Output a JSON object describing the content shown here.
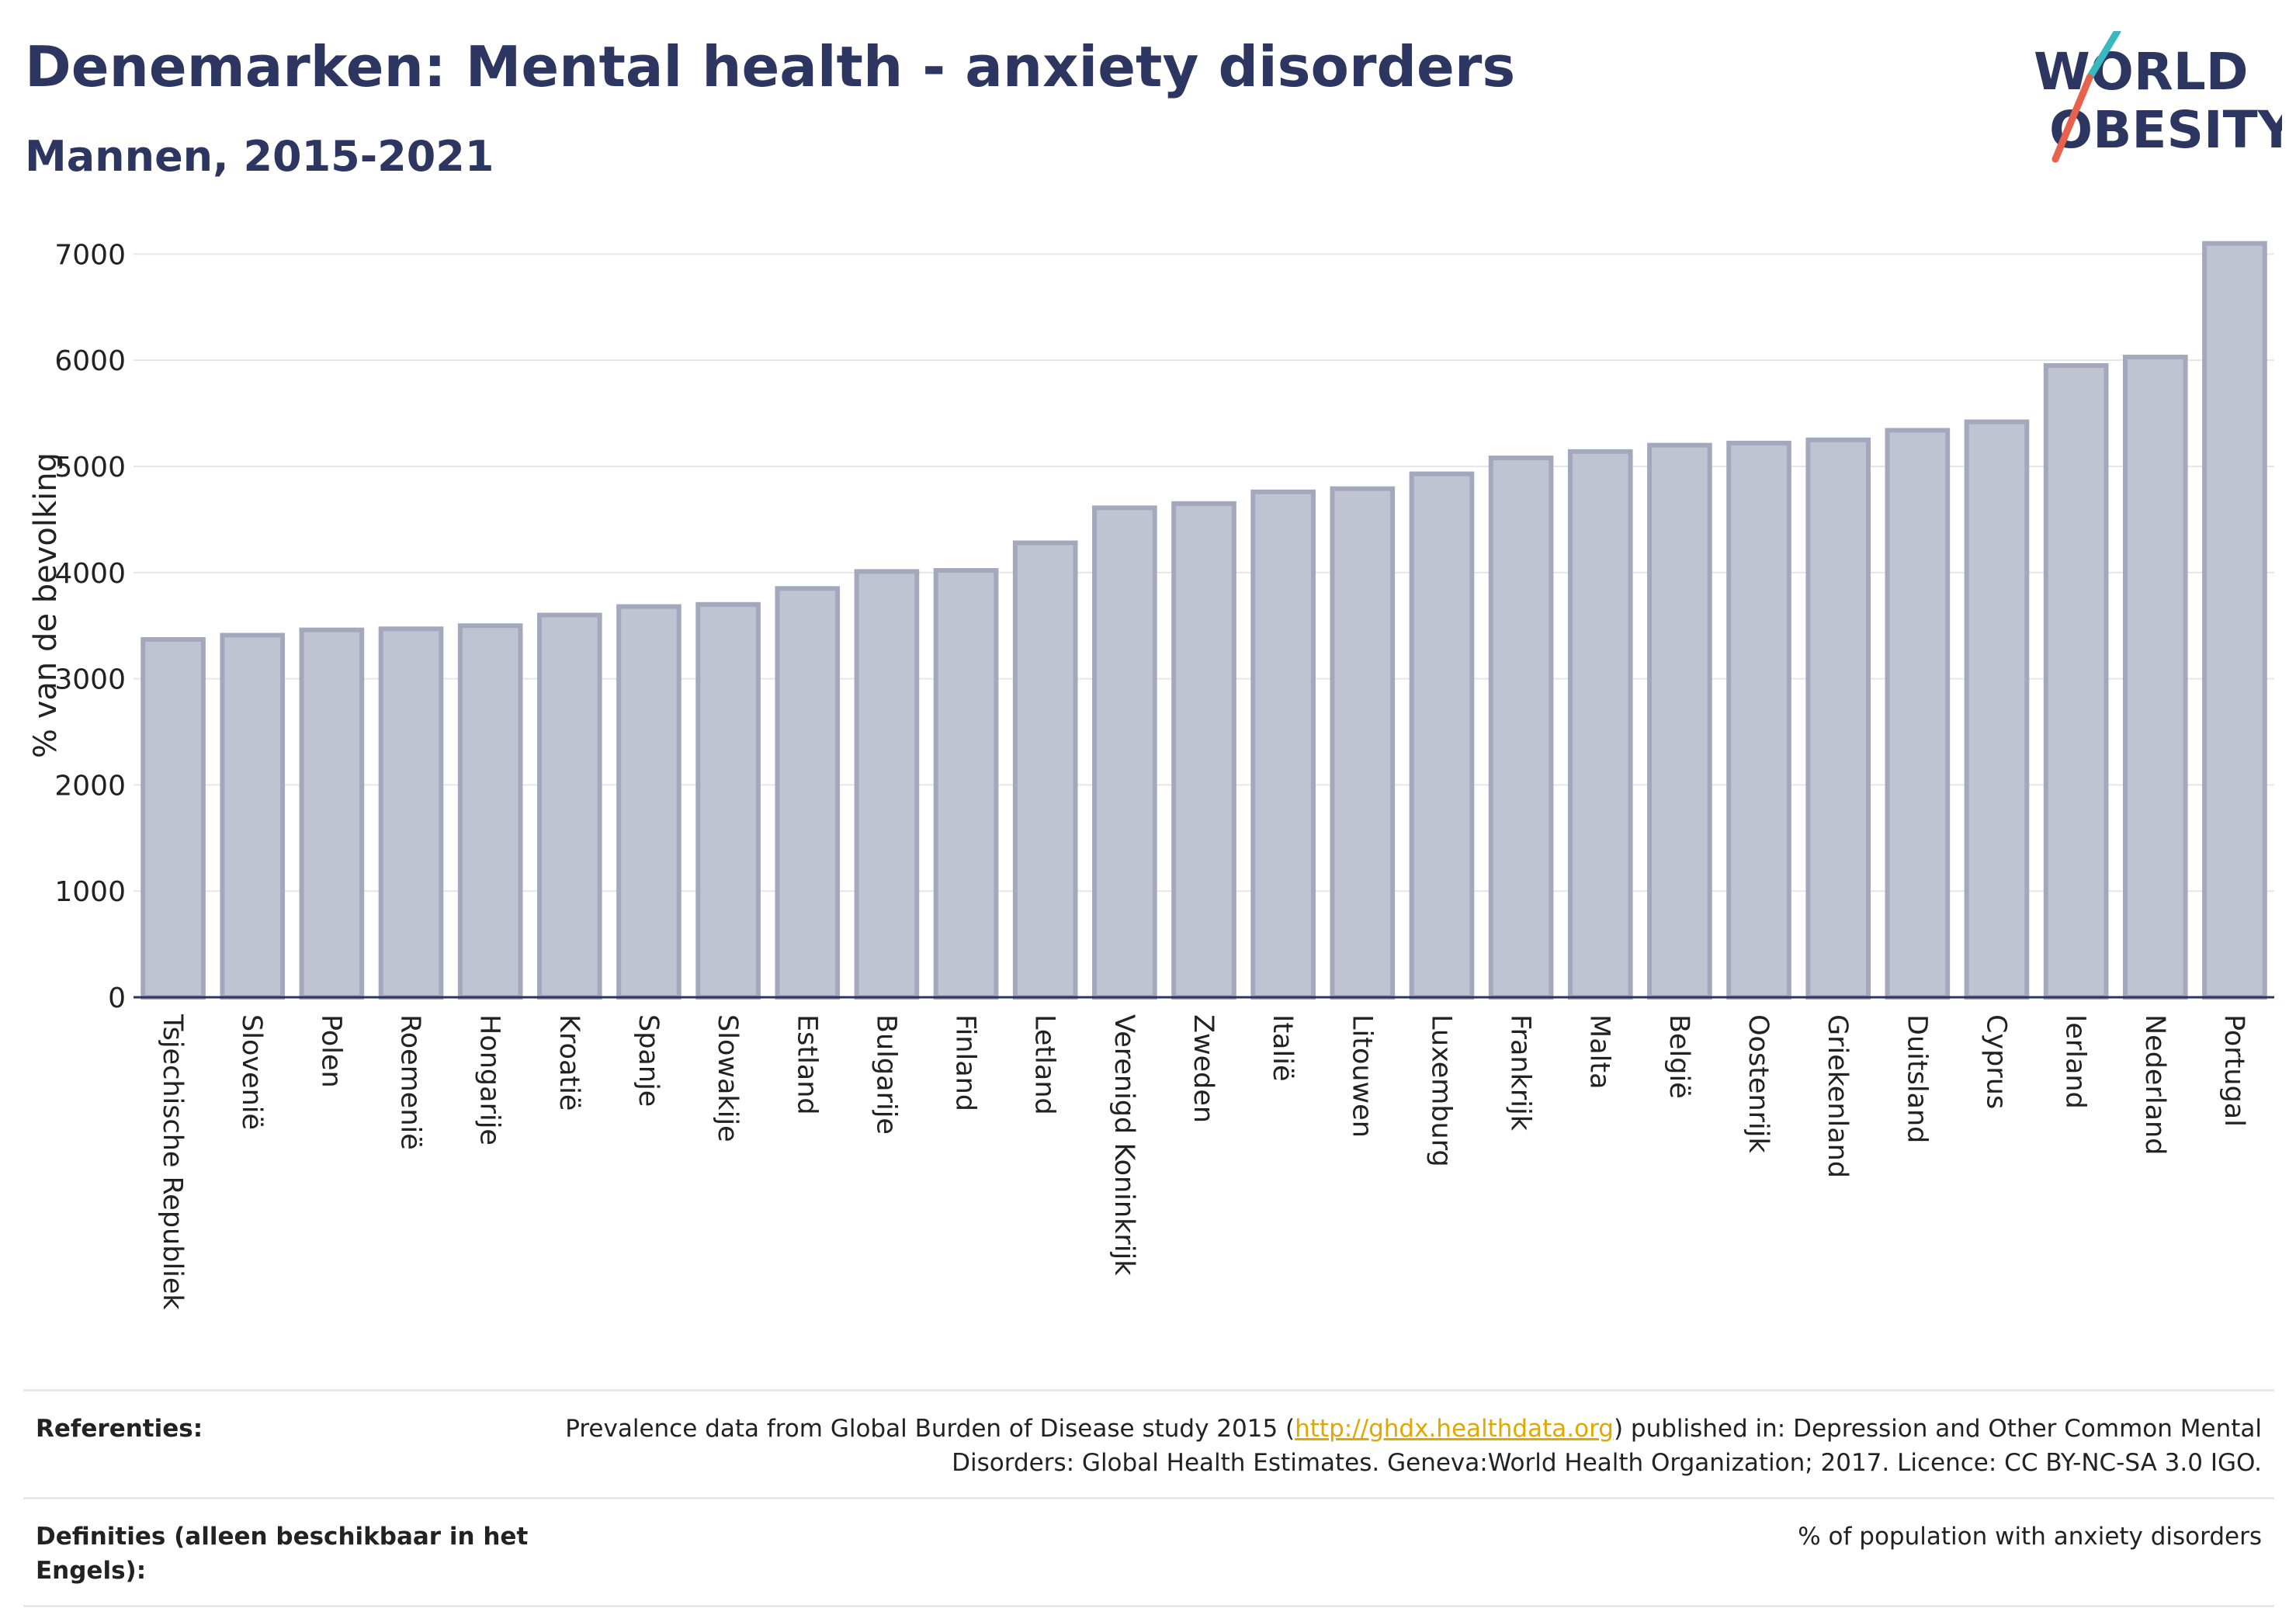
{
  "header": {
    "title": "Denemarken: Mental health - anxiety disorders",
    "subtitle": "Mannen, 2015-2021"
  },
  "logo": {
    "line1": "WORLD",
    "line2": "OBESITY",
    "colors": {
      "text": "#2d3561",
      "slash_teal": "#3ab8c0",
      "slash_red": "#e8614d"
    }
  },
  "chart_data": {
    "type": "bar",
    "ylabel": "% van de bevolking",
    "ylim": [
      0,
      7200
    ],
    "yticks": [
      0,
      1000,
      2000,
      3000,
      4000,
      5000,
      6000,
      7000
    ],
    "grid": true,
    "bar_color": "#c0c3d1",
    "bar_edge_color": "#a4a8bd",
    "categories": [
      "Tsjechische Republiek",
      "Slovenië",
      "Polen",
      "Roemenië",
      "Hongarije",
      "Kroatië",
      "Spanje",
      "Slowakije",
      "Estland",
      "Bulgarije",
      "Finland",
      "Letland",
      "Verenigd Koninkrijk",
      "Zweden",
      "Italië",
      "Litouwen",
      "Luxemburg",
      "Frankrijk",
      "Malta",
      "België",
      "Oostenrijk",
      "Griekenland",
      "Duitsland",
      "Cyprus",
      "Ierland",
      "Nederland",
      "Portugal"
    ],
    "values": [
      3370,
      3410,
      3460,
      3470,
      3500,
      3600,
      3680,
      3700,
      3850,
      4010,
      4020,
      4280,
      4610,
      4650,
      4760,
      4790,
      4930,
      5080,
      5140,
      5200,
      5220,
      5250,
      5340,
      5420,
      5950,
      6030,
      7100
    ]
  },
  "references": {
    "label": "Referenties:",
    "text_before": "Prevalence data from Global Burden of Disease study 2015 (",
    "link": "http://ghdx.healthdata.org",
    "text_after": ") published in: Depression and Other Common Mental Disorders: Global Health Estimates. Geneva:World Health Organization; 2017. Licence: CC BY-NC-SA 3.0 IGO."
  },
  "definitions": {
    "label": "Definities (alleen beschikbaar in het Engels):",
    "text": "% of population with anxiety disorders"
  }
}
